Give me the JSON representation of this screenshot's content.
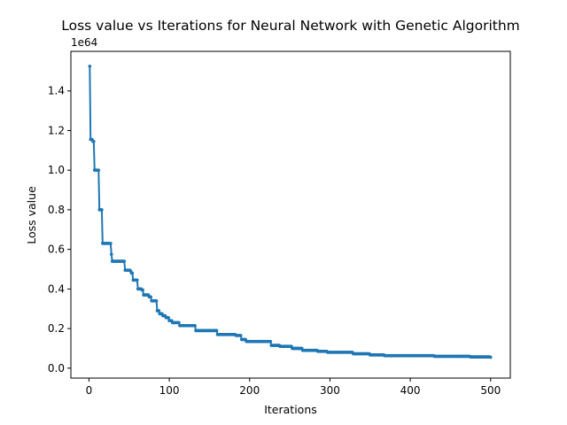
{
  "chart_data": {
    "type": "line",
    "title": "Loss value vs Iterations for Neural Network with Genetic Algorithm",
    "xlabel": "Iterations",
    "ylabel": "Loss value",
    "y_scale_label": "1e64",
    "xlim": [
      -22.5,
      524.5
    ],
    "ylim": [
      -0.05,
      1.6
    ],
    "x_ticks": [
      0,
      100,
      200,
      300,
      400,
      500
    ],
    "x_tick_labels": [
      "0",
      "100",
      "200",
      "300",
      "400",
      "500"
    ],
    "y_ticks": [
      0.0,
      0.2,
      0.4,
      0.6,
      0.8,
      1.0,
      1.2,
      1.4
    ],
    "y_tick_labels": [
      "0.0",
      "0.2",
      "0.4",
      "0.6",
      "0.8",
      "1.0",
      "1.2",
      "1.4"
    ],
    "grid": false,
    "legend": "none",
    "color": "#1f77b4",
    "marker": "point",
    "series": [
      {
        "values_piecewise_constant": [
          [
            1,
            1.525
          ],
          [
            2,
            1.155
          ],
          [
            5,
            1.145
          ],
          [
            7,
            1.0
          ],
          [
            13,
            0.8
          ],
          [
            17,
            0.63
          ],
          [
            28,
            0.575
          ],
          [
            29,
            0.54
          ],
          [
            45,
            0.495
          ],
          [
            52,
            0.49
          ],
          [
            53,
            0.48
          ],
          [
            55,
            0.445
          ],
          [
            61,
            0.4
          ],
          [
            66,
            0.395
          ],
          [
            68,
            0.37
          ],
          [
            75,
            0.36
          ],
          [
            78,
            0.34
          ],
          [
            85,
            0.29
          ],
          [
            88,
            0.275
          ],
          [
            92,
            0.265
          ],
          [
            96,
            0.255
          ],
          [
            100,
            0.24
          ],
          [
            104,
            0.23
          ],
          [
            113,
            0.215
          ],
          [
            133,
            0.19
          ],
          [
            160,
            0.17
          ],
          [
            183,
            0.165
          ],
          [
            190,
            0.145
          ],
          [
            196,
            0.135
          ],
          [
            227,
            0.115
          ],
          [
            238,
            0.11
          ],
          [
            253,
            0.1
          ],
          [
            266,
            0.09
          ],
          [
            285,
            0.085
          ],
          [
            297,
            0.08
          ],
          [
            329,
            0.073
          ],
          [
            350,
            0.067
          ],
          [
            368,
            0.063
          ],
          [
            430,
            0.06
          ],
          [
            475,
            0.057
          ],
          [
            500,
            0.055
          ]
        ]
      }
    ]
  }
}
